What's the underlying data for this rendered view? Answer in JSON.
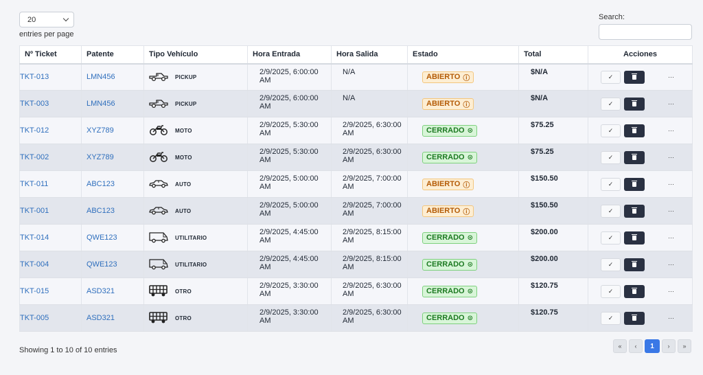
{
  "controls": {
    "per_page_value": "20",
    "per_page_label": "entries per page",
    "search_label": "Search:",
    "search_value": "",
    "search_placeholder": ""
  },
  "table": {
    "headers": [
      "Nº Ticket",
      "Patente",
      "Tipo Vehículo",
      "Hora Entrada",
      "Hora Salida",
      "Estado",
      "Total",
      "Acciones"
    ],
    "rows": [
      {
        "ticket": "TKT-013",
        "patente": "LMN456",
        "icon": "pickup-icon",
        "tipo": "PICKUP",
        "entrada": "2/9/2025, 6:00:00 AM",
        "salida": "N/A",
        "estado": "ABIERTO",
        "status_kind": "abierto",
        "total": "$N/A"
      },
      {
        "ticket": "TKT-003",
        "patente": "LMN456",
        "icon": "pickup-icon",
        "tipo": "PICKUP",
        "entrada": "2/9/2025, 6:00:00 AM",
        "salida": "N/A",
        "estado": "ABIERTO",
        "status_kind": "abierto",
        "total": "$N/A"
      },
      {
        "ticket": "TKT-012",
        "patente": "XYZ789",
        "icon": "motorcycle-icon",
        "tipo": "MOTO",
        "entrada": "2/9/2025, 5:30:00 AM",
        "salida": "2/9/2025, 6:30:00 AM",
        "estado": "CERRADO",
        "status_kind": "cerrado",
        "total": "$75.25"
      },
      {
        "ticket": "TKT-002",
        "patente": "XYZ789",
        "icon": "motorcycle-icon",
        "tipo": "MOTO",
        "entrada": "2/9/2025, 5:30:00 AM",
        "salida": "2/9/2025, 6:30:00 AM",
        "estado": "CERRADO",
        "status_kind": "cerrado",
        "total": "$75.25"
      },
      {
        "ticket": "TKT-011",
        "patente": "ABC123",
        "icon": "car-icon",
        "tipo": "AUTO",
        "entrada": "2/9/2025, 5:00:00 AM",
        "salida": "2/9/2025, 7:00:00 AM",
        "estado": "ABIERTO",
        "status_kind": "abierto",
        "total": "$150.50"
      },
      {
        "ticket": "TKT-001",
        "patente": "ABC123",
        "icon": "car-icon",
        "tipo": "AUTO",
        "entrada": "2/9/2025, 5:00:00 AM",
        "salida": "2/9/2025, 7:00:00 AM",
        "estado": "ABIERTO",
        "status_kind": "abierto",
        "total": "$150.50"
      },
      {
        "ticket": "TKT-014",
        "patente": "QWE123",
        "icon": "van-icon",
        "tipo": "UTILITARIO",
        "entrada": "2/9/2025, 4:45:00 AM",
        "salida": "2/9/2025, 8:15:00 AM",
        "estado": "CERRADO",
        "status_kind": "cerrado",
        "total": "$200.00"
      },
      {
        "ticket": "TKT-004",
        "patente": "QWE123",
        "icon": "van-icon",
        "tipo": "UTILITARIO",
        "entrada": "2/9/2025, 4:45:00 AM",
        "salida": "2/9/2025, 8:15:00 AM",
        "estado": "CERRADO",
        "status_kind": "cerrado",
        "total": "$200.00"
      },
      {
        "ticket": "TKT-015",
        "patente": "ASD321",
        "icon": "truck-icon",
        "tipo": "OTRO",
        "entrada": "2/9/2025, 3:30:00 AM",
        "salida": "2/9/2025, 6:30:00 AM",
        "estado": "CERRADO",
        "status_kind": "cerrado",
        "total": "$120.75"
      },
      {
        "ticket": "TKT-005",
        "patente": "ASD321",
        "icon": "truck-icon",
        "tipo": "OTRO",
        "entrada": "2/9/2025, 3:30:00 AM",
        "salida": "2/9/2025, 6:30:00 AM",
        "estado": "CERRADO",
        "status_kind": "cerrado",
        "total": "$120.75"
      }
    ],
    "actions": {
      "check_glyph": "✓",
      "more_glyph": "···"
    }
  },
  "footer": {
    "info": "Showing 1 to 10 of 10 entries",
    "pages": [
      "«",
      "‹",
      "1",
      "›",
      "»"
    ],
    "active_page": "1"
  },
  "colors": {
    "link": "#2f6fbd",
    "abierto_text": "#b45b06",
    "cerrado_text": "#1d7a22",
    "active_page": "#3a78e6",
    "delete_button": "#2a3142"
  }
}
